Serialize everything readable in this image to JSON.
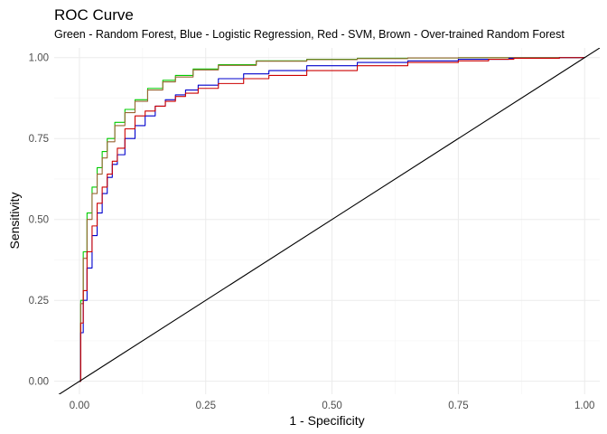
{
  "chart_data": {
    "type": "line",
    "title": "ROC Curve",
    "subtitle": "Green - Random Forest, Blue - Logistic Regression, Red - SVM, Brown - Over-trained Random Forest",
    "xlabel": "1 - Specificity",
    "ylabel": "Sensitivity",
    "xlim": [
      -0.05,
      1.03
    ],
    "ylim": [
      -0.04,
      1.03
    ],
    "x_ticks": [
      "0.00",
      "0.25",
      "0.50",
      "0.75",
      "1.00"
    ],
    "y_ticks": [
      "0.00",
      "0.25",
      "0.50",
      "0.75",
      "1.00"
    ],
    "grid": true,
    "legend": "none",
    "series": [
      {
        "color": "#00cc00",
        "x": [
          0,
          0.005,
          0.01,
          0.02,
          0.03,
          0.04,
          0.05,
          0.06,
          0.08,
          0.1,
          0.12,
          0.15,
          0.18,
          0.2,
          0.25,
          0.3,
          0.4,
          0.5,
          0.6,
          0.7,
          0.8,
          0.9,
          1.0
        ],
        "y": [
          0,
          0.25,
          0.4,
          0.52,
          0.6,
          0.66,
          0.71,
          0.75,
          0.8,
          0.84,
          0.87,
          0.905,
          0.93,
          0.945,
          0.965,
          0.978,
          0.99,
          0.995,
          0.998,
          0.999,
          1.0,
          1.0,
          1.0
        ]
      },
      {
        "color": "#996633",
        "x": [
          0,
          0.005,
          0.01,
          0.02,
          0.03,
          0.04,
          0.05,
          0.06,
          0.08,
          0.1,
          0.12,
          0.15,
          0.18,
          0.2,
          0.25,
          0.3,
          0.4,
          0.5,
          0.6,
          0.7,
          0.8,
          0.9,
          1.0
        ],
        "y": [
          0,
          0.24,
          0.38,
          0.5,
          0.58,
          0.64,
          0.69,
          0.74,
          0.79,
          0.83,
          0.865,
          0.9,
          0.925,
          0.94,
          0.962,
          0.976,
          0.989,
          0.994,
          0.997,
          0.999,
          1.0,
          1.0,
          1.0
        ]
      },
      {
        "color": "#0000cc",
        "x": [
          0,
          0.005,
          0.01,
          0.02,
          0.03,
          0.04,
          0.05,
          0.06,
          0.07,
          0.08,
          0.1,
          0.12,
          0.14,
          0.16,
          0.18,
          0.2,
          0.22,
          0.25,
          0.3,
          0.35,
          0.4,
          0.5,
          0.6,
          0.7,
          0.8,
          0.9,
          1.0
        ],
        "y": [
          0,
          0.15,
          0.25,
          0.35,
          0.45,
          0.52,
          0.58,
          0.63,
          0.67,
          0.7,
          0.75,
          0.79,
          0.82,
          0.85,
          0.87,
          0.885,
          0.9,
          0.915,
          0.935,
          0.95,
          0.96,
          0.975,
          0.985,
          0.99,
          0.995,
          0.998,
          1.0
        ]
      },
      {
        "color": "#cc0000",
        "x": [
          0,
          0.005,
          0.01,
          0.02,
          0.03,
          0.04,
          0.05,
          0.06,
          0.07,
          0.08,
          0.1,
          0.12,
          0.14,
          0.16,
          0.18,
          0.2,
          0.22,
          0.25,
          0.3,
          0.35,
          0.4,
          0.5,
          0.6,
          0.7,
          0.8,
          0.82,
          0.9,
          1.0
        ],
        "y": [
          0,
          0.18,
          0.28,
          0.4,
          0.48,
          0.55,
          0.6,
          0.64,
          0.68,
          0.72,
          0.78,
          0.82,
          0.835,
          0.85,
          0.865,
          0.88,
          0.89,
          0.905,
          0.92,
          0.935,
          0.945,
          0.96,
          0.975,
          0.985,
          0.99,
          0.995,
          0.998,
          1.0
        ]
      },
      {
        "color": "#000000",
        "x": [
          -0.05,
          1.03
        ],
        "y": [
          -0.05,
          1.03
        ]
      }
    ]
  }
}
